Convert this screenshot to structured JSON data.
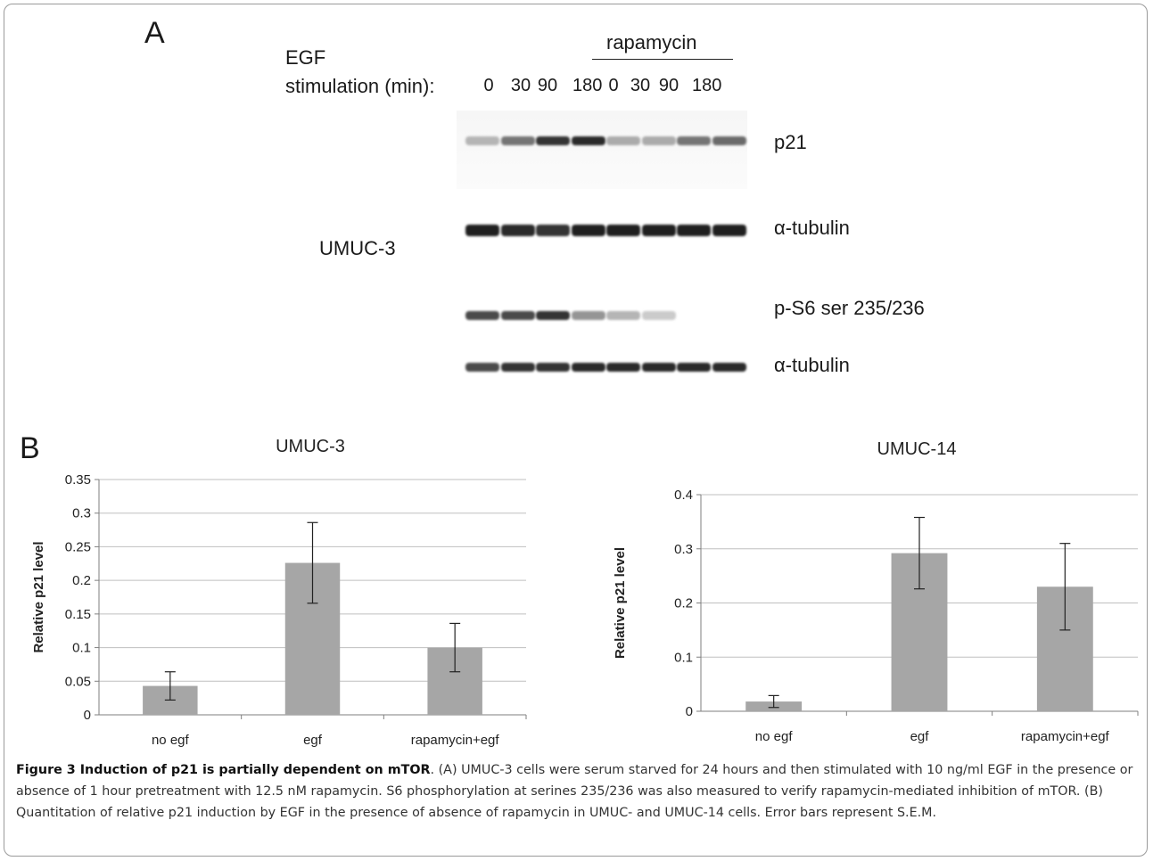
{
  "panel_a": {
    "letter": "A",
    "egf_label": "EGF",
    "stimulation_label": "stimulation (min):",
    "rapamycin_label": "rapamycin",
    "lanes": [
      "0",
      "30",
      "90",
      "180",
      "0",
      "30",
      "90",
      "180"
    ],
    "cell_line": "UMUC-3",
    "blots": [
      {
        "label": "p21",
        "intensity": [
          0.25,
          0.55,
          0.85,
          0.9,
          0.3,
          0.3,
          0.55,
          0.6
        ]
      },
      {
        "label": "α-tubulin",
        "intensity": [
          0.95,
          0.9,
          0.85,
          0.95,
          0.95,
          0.95,
          0.95,
          0.95
        ]
      },
      {
        "label": "p-S6 ser 235/236",
        "intensity": [
          0.75,
          0.75,
          0.85,
          0.4,
          0.25,
          0.15,
          0.0,
          0.0
        ]
      },
      {
        "label": "α-tubulin",
        "intensity": [
          0.75,
          0.85,
          0.85,
          0.9,
          0.9,
          0.9,
          0.9,
          0.9
        ]
      }
    ]
  },
  "panel_b": {
    "letter": "B"
  },
  "chart_data": [
    {
      "type": "bar",
      "title": "UMUC-3",
      "ylabel": "Relative p21 level",
      "categories": [
        "no egf",
        "egf",
        "rapamycin+egf"
      ],
      "values": [
        0.043,
        0.226,
        0.1
      ],
      "errors": [
        0.021,
        0.06,
        0.036
      ],
      "ylim": [
        0,
        0.35
      ],
      "yticks": [
        "0",
        "0.05",
        "0.1",
        "0.15",
        "0.2",
        "0.25",
        "0.3",
        "0.35"
      ],
      "ytick_values": [
        0,
        0.05,
        0.1,
        0.15,
        0.2,
        0.25,
        0.3,
        0.35
      ],
      "grid": true,
      "bar_color": "#a6a6a6"
    },
    {
      "type": "bar",
      "title": "UMUC-14",
      "ylabel": "Relative p21 level",
      "categories": [
        "no egf",
        "egf",
        "rapamycin+egf"
      ],
      "values": [
        0.018,
        0.292,
        0.23
      ],
      "errors": [
        0.011,
        0.066,
        0.08
      ],
      "ylim": [
        0,
        0.4
      ],
      "yticks": [
        "0",
        "0.1",
        "0.2",
        "0.3",
        "0.4"
      ],
      "ytick_values": [
        0,
        0.1,
        0.2,
        0.3,
        0.4
      ],
      "grid": true,
      "bar_color": "#a6a6a6"
    }
  ],
  "caption": {
    "title": "Figure 3 Induction of p21 is partially dependent on mTOR",
    "text": ". (A) UMUC-3 cells were serum starved for 24 hours and then stimulated with 10 ng/ml EGF in the presence or absence of 1 hour pretreatment with 12.5 nM rapamycin. S6 phosphorylation at serines 235/236 was also measured to verify rapamycin-mediated inhibition of mTOR. (B) Quantitation of relative p21 induction by EGF in the presence of absence of rapamycin in UMUC- and UMUC-14 cells. Error bars represent S.E.M."
  }
}
